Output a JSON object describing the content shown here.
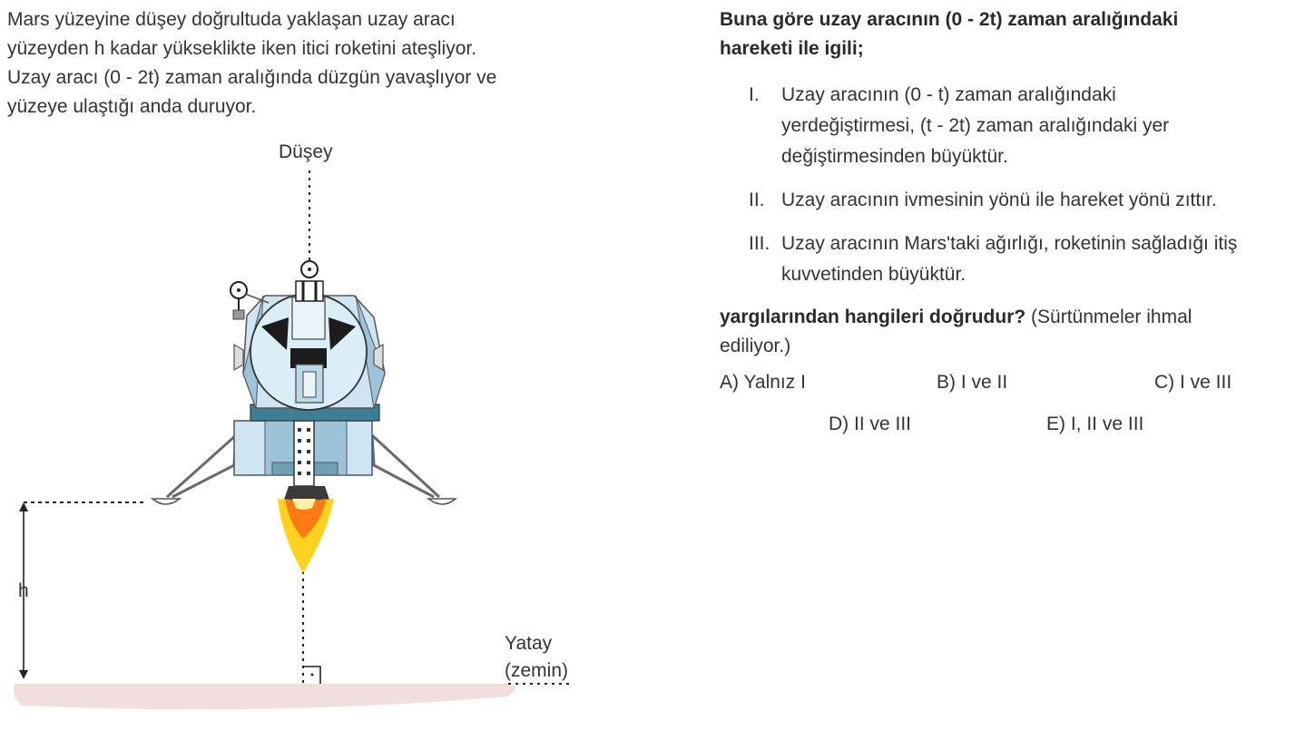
{
  "intro": {
    "lines": [
      "Mars yüzeyine düşey doğrultuda yaklaşan uzay aracı",
      "yüzeyden h kadar yükseklikte iken itici roketini ateşliyor.",
      "Uzay aracı (0 - 2t) zaman aralığında düzgün yavaşlıyor ve",
      "yüzeye ulaştığı anda duruyor."
    ]
  },
  "figure": {
    "vertical_label": "Düşey",
    "height_label": "h",
    "horizontal_label_line1": "Yatay",
    "horizontal_label_line2": "(zemin)"
  },
  "question": {
    "stem_lines": [
      "Buna göre uzay aracının (0 - 2t) zaman aralığındaki",
      "hareketi ile igili;"
    ],
    "statements": [
      {
        "num": "I.",
        "lines": [
          "Uzay aracının (0 - t) zaman aralığındaki",
          "yerdeğiştirmesi, (t - 2t) zaman aralığındaki yer",
          "değiştirmesinden büyüktür."
        ]
      },
      {
        "num": "II.",
        "lines": [
          "Uzay aracının ivmesinin yönü ile hareket yönü zıttır."
        ]
      },
      {
        "num": "III.",
        "lines": [
          "Uzay aracının Mars'taki ağırlığı, roketinin sağladığı itiş",
          "kuvvetinden büyüktür."
        ]
      }
    ],
    "ask_bold": "yargılarından hangileri doğrudur?",
    "ask_rest": " (Sürtünmeler ihmal",
    "ask_line2": "ediliyor.)",
    "choices": {
      "a": "A) Yalnız I",
      "b": "B) I ve II",
      "c": "C) I ve III",
      "d": "D) II ve III",
      "e": "E) I, II ve III"
    }
  },
  "colors": {
    "lander_light": "#cfe6f2",
    "lander_mid": "#9cc3d8",
    "lander_dark": "#3f7f95",
    "ground": "#f1dede",
    "flame_outer": "#ffd21f",
    "flame_inner": "#ff7a14"
  }
}
